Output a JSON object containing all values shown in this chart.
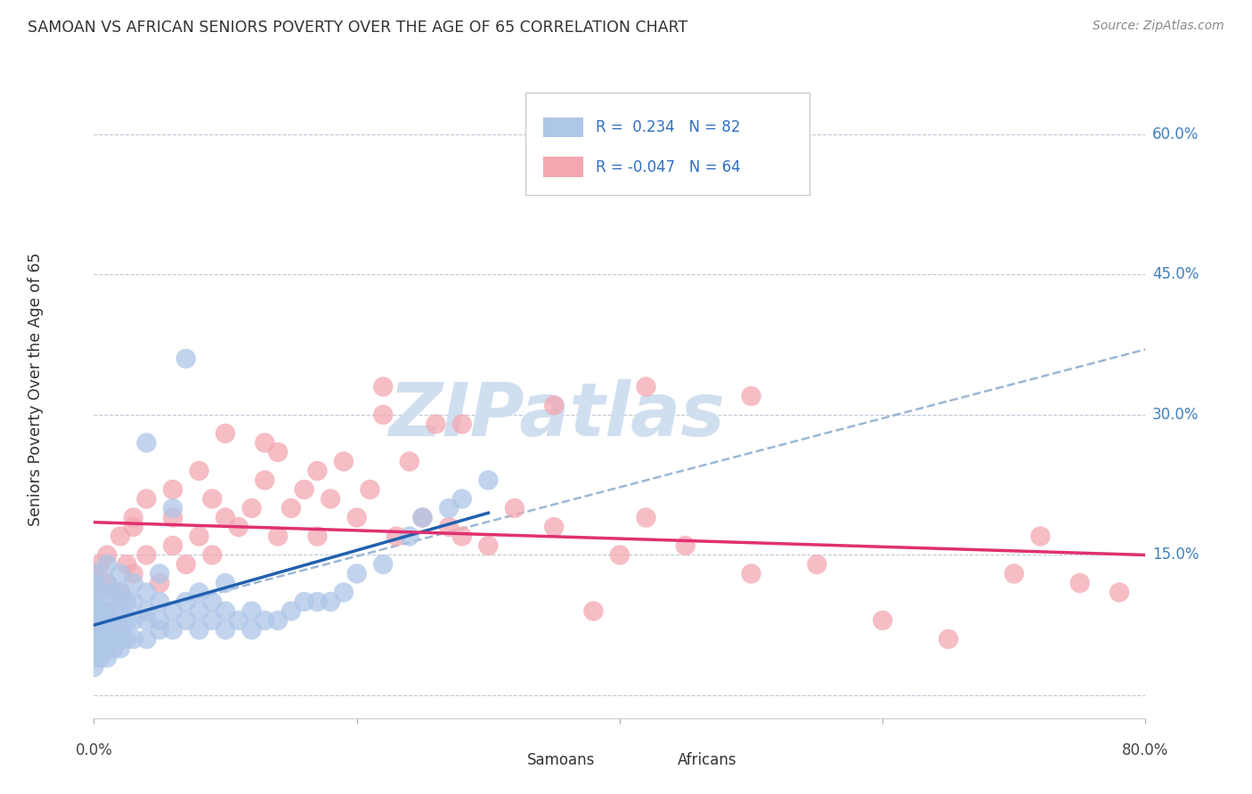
{
  "title": "SAMOAN VS AFRICAN SENIORS POVERTY OVER THE AGE OF 65 CORRELATION CHART",
  "source": "Source: ZipAtlas.com",
  "ylabel": "Seniors Poverty Over the Age of 65",
  "yticks": [
    0.0,
    0.15,
    0.3,
    0.45,
    0.6
  ],
  "ytick_labels": [
    "",
    "15.0%",
    "30.0%",
    "45.0%",
    "60.0%"
  ],
  "xlim": [
    0.0,
    0.8
  ],
  "ylim": [
    -0.025,
    0.68
  ],
  "samoans_color": "#aec6e8",
  "africans_color": "#f4a7b0",
  "samoans_line_color": "#2060b0",
  "africans_line_color": "#e03070",
  "dash_color": "#90b0d0",
  "watermark_color": "#d0dff0",
  "samoans_x": [
    0.0,
    0.0,
    0.0,
    0.0,
    0.0,
    0.0,
    0.0,
    0.0,
    0.0,
    0.0,
    0.0,
    0.005,
    0.005,
    0.005,
    0.005,
    0.005,
    0.01,
    0.01,
    0.01,
    0.01,
    0.01,
    0.01,
    0.01,
    0.01,
    0.01,
    0.015,
    0.015,
    0.015,
    0.015,
    0.02,
    0.02,
    0.02,
    0.02,
    0.02,
    0.02,
    0.025,
    0.025,
    0.025,
    0.03,
    0.03,
    0.03,
    0.03,
    0.04,
    0.04,
    0.04,
    0.04,
    0.04,
    0.05,
    0.05,
    0.05,
    0.05,
    0.06,
    0.06,
    0.06,
    0.07,
    0.07,
    0.07,
    0.08,
    0.08,
    0.08,
    0.09,
    0.09,
    0.1,
    0.1,
    0.1,
    0.11,
    0.12,
    0.12,
    0.13,
    0.14,
    0.15,
    0.16,
    0.17,
    0.18,
    0.19,
    0.2,
    0.22,
    0.24,
    0.25,
    0.27,
    0.28,
    0.3
  ],
  "samoans_y": [
    0.03,
    0.04,
    0.05,
    0.06,
    0.07,
    0.08,
    0.09,
    0.1,
    0.11,
    0.12,
    0.13,
    0.04,
    0.05,
    0.07,
    0.09,
    0.11,
    0.04,
    0.05,
    0.06,
    0.07,
    0.08,
    0.09,
    0.1,
    0.12,
    0.14,
    0.05,
    0.07,
    0.09,
    0.11,
    0.05,
    0.06,
    0.07,
    0.09,
    0.11,
    0.13,
    0.06,
    0.08,
    0.1,
    0.06,
    0.08,
    0.1,
    0.12,
    0.06,
    0.08,
    0.09,
    0.11,
    0.27,
    0.07,
    0.08,
    0.1,
    0.13,
    0.07,
    0.09,
    0.2,
    0.08,
    0.1,
    0.36,
    0.07,
    0.09,
    0.11,
    0.08,
    0.1,
    0.07,
    0.09,
    0.12,
    0.08,
    0.07,
    0.09,
    0.08,
    0.08,
    0.09,
    0.1,
    0.1,
    0.1,
    0.11,
    0.13,
    0.14,
    0.17,
    0.19,
    0.2,
    0.21,
    0.23
  ],
  "africans_x": [
    0.0,
    0.005,
    0.01,
    0.01,
    0.02,
    0.02,
    0.025,
    0.03,
    0.03,
    0.04,
    0.04,
    0.05,
    0.06,
    0.06,
    0.07,
    0.08,
    0.08,
    0.09,
    0.1,
    0.1,
    0.11,
    0.12,
    0.13,
    0.14,
    0.14,
    0.15,
    0.16,
    0.17,
    0.18,
    0.19,
    0.2,
    0.21,
    0.22,
    0.23,
    0.24,
    0.25,
    0.26,
    0.27,
    0.28,
    0.3,
    0.32,
    0.35,
    0.38,
    0.4,
    0.42,
    0.45,
    0.5,
    0.55,
    0.6,
    0.65,
    0.7,
    0.72,
    0.75,
    0.78,
    0.42,
    0.5,
    0.35,
    0.28,
    0.22,
    0.17,
    0.13,
    0.09,
    0.06,
    0.03
  ],
  "africans_y": [
    0.13,
    0.14,
    0.12,
    0.15,
    0.11,
    0.17,
    0.14,
    0.13,
    0.19,
    0.15,
    0.21,
    0.12,
    0.16,
    0.22,
    0.14,
    0.17,
    0.24,
    0.15,
    0.19,
    0.28,
    0.18,
    0.2,
    0.23,
    0.17,
    0.26,
    0.2,
    0.22,
    0.24,
    0.21,
    0.25,
    0.19,
    0.22,
    0.3,
    0.17,
    0.25,
    0.19,
    0.29,
    0.18,
    0.17,
    0.16,
    0.2,
    0.18,
    0.09,
    0.15,
    0.19,
    0.16,
    0.13,
    0.14,
    0.08,
    0.06,
    0.13,
    0.17,
    0.12,
    0.11,
    0.33,
    0.32,
    0.31,
    0.29,
    0.33,
    0.17,
    0.27,
    0.21,
    0.19,
    0.18
  ],
  "sam_line_x0": 0.0,
  "sam_line_y0": 0.075,
  "sam_line_x1": 0.3,
  "sam_line_y1": 0.195,
  "afr_line_x0": 0.0,
  "afr_line_y0": 0.185,
  "afr_line_x1": 0.8,
  "afr_line_y1": 0.15,
  "dash_line_x0": 0.0,
  "dash_line_y0": 0.075,
  "dash_line_x1": 0.8,
  "dash_line_y1": 0.37
}
